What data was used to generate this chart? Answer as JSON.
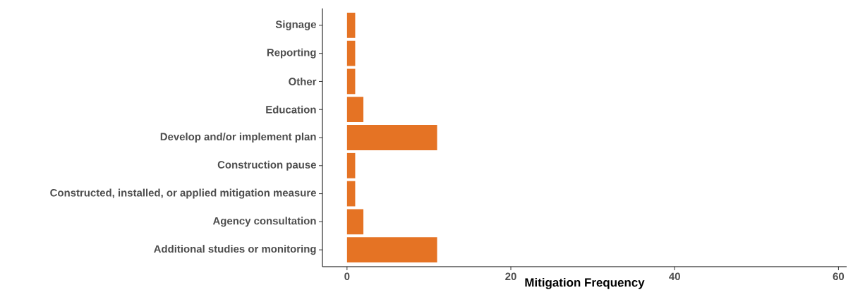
{
  "chart_data": {
    "type": "bar",
    "orientation": "horizontal",
    "xlabel": "Mitigation Frequency",
    "categories": [
      "Signage",
      "Reporting",
      "Other",
      "Education",
      "Develop and/or implement plan",
      "Construction pause",
      "Constructed, installed, or applied mitigation measure",
      "Agency consultation",
      "Additional studies or monitoring"
    ],
    "values": [
      1,
      1,
      1,
      2,
      11,
      1,
      1,
      2,
      11
    ],
    "color": "#e57324",
    "xlim": [
      -3,
      61
    ],
    "xticks": [
      0,
      20,
      40,
      60
    ]
  }
}
